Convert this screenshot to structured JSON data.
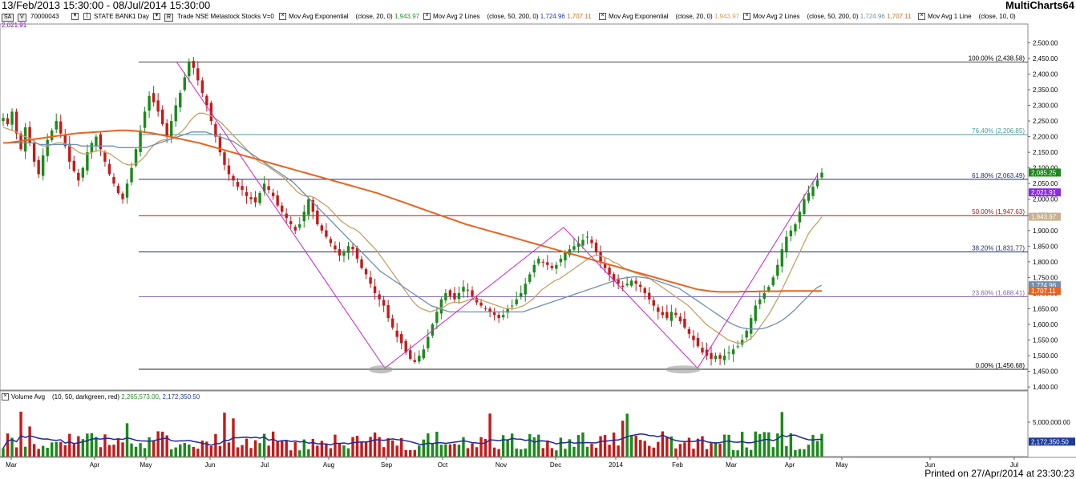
{
  "header": {
    "date_range": "13/Feb/2013 15:30:00 - 08/Jul/2014 15:30:00",
    "brand": "MultiCharts64"
  },
  "indicator_bar": {
    "box_sa": "SA",
    "box_v": "V",
    "symbol_code": "70000043",
    "symbol": "STATE BANK",
    "resolution": "1 Day",
    "box_r": "R",
    "feed": "Trade NSE Metastock Stocks V=0",
    "studies": [
      {
        "name": "Mov Avg Exponential",
        "params": "(close, 20, 0)",
        "values": [
          "1,943.97"
        ],
        "colors": [
          "#2a8a2a"
        ]
      },
      {
        "name": "Mov Avg 2 Lines",
        "params": "(close, 50, 200, 0)",
        "values": [
          "1,724.96",
          "1,707.11"
        ],
        "colors": [
          "#1e3c9a",
          "#d2691e"
        ]
      },
      {
        "name": "Mov Avg Exponential",
        "params": "(close, 20, 0)",
        "values": [
          "1,943.97"
        ],
        "colors": [
          "#c8a064"
        ]
      },
      {
        "name": "Mov Avg 2 Lines",
        "params": "(close, 50, 200, 0)",
        "values": [
          "1,724.96",
          "1,707.11"
        ],
        "colors": [
          "#6f8fb0",
          "#d2691e"
        ]
      },
      {
        "name": "Mov Avg 1 Line",
        "params": "(close, 10, 0)",
        "values": [],
        "colors": []
      }
    ],
    "sub_value": "2,021.91"
  },
  "volume_legend": {
    "label": "Volume Avg",
    "params": "(10, 50, darkgreen, red)",
    "value1": "2,265,573.00",
    "value2": "2,172,350.50",
    "value1_color": "#2a8a2a",
    "value2_color": "#1e3c9a"
  },
  "footer": {
    "printed": "Printed on 27/Apr/2014 at 23:30:23"
  },
  "chart_data": {
    "type": "candlestick",
    "price_axis": {
      "ylim": [
        1390,
        2560
      ],
      "ticks": [
        "2,500.00",
        "2,450.00",
        "2,400.00",
        "2,350.00",
        "2,300.00",
        "2,250.00",
        "2,200.00",
        "2,150.00",
        "2,100.00",
        "2,050.00",
        "2,000.00",
        "1,950.00",
        "1,900.00",
        "1,850.00",
        "1,800.00",
        "1,750.00",
        "1,700.00",
        "1,650.00",
        "1,600.00",
        "1,550.00",
        "1,500.00",
        "1,450.00",
        "1,400.00"
      ],
      "tick_values": [
        2500,
        2450,
        2400,
        2350,
        2300,
        2250,
        2200,
        2150,
        2100,
        2050,
        2000,
        1950,
        1900,
        1850,
        1800,
        1750,
        1700,
        1650,
        1600,
        1550,
        1500,
        1450,
        1400
      ]
    },
    "volume_axis": {
      "ylim": [
        0,
        7800000
      ],
      "tick": "5,000,000.00",
      "tick_value": 5000000,
      "avg_label": "2,172,350.50",
      "avg_value": 2172350
    },
    "x_axis": {
      "labels": [
        "Mar",
        "Apr",
        "May",
        "Jun",
        "Jul",
        "Aug",
        "Sep",
        "Oct",
        "Nov",
        "Dec",
        "2014",
        "Feb",
        "Mar",
        "Apr",
        "May",
        "Jun",
        "Jul"
      ],
      "positions": [
        14,
        40,
        63,
        86,
        110,
        134,
        157,
        180,
        203,
        226,
        250,
        274,
        295,
        319,
        342,
        366,
        389
      ]
    },
    "price_flags": [
      {
        "label": "2,085.25",
        "value": 2085.25,
        "color": "#1a8a1a"
      },
      {
        "label": "2,021.91",
        "value": 2021.91,
        "color": "#8a2be2"
      },
      {
        "label": "1,943.97",
        "value": 1943.97,
        "color": "#c8b090"
      },
      {
        "label": "1,724.96",
        "value": 1724.96,
        "color": "#6f8fb0"
      },
      {
        "label": "1,707.11",
        "value": 1707.11,
        "color": "#e8641e"
      }
    ],
    "fibonacci": [
      {
        "label": "100.00% (2,438.58)",
        "value": 2438.58,
        "color": "#444444"
      },
      {
        "label": "76.40% (2,206.85)",
        "value": 2206.85,
        "color": "#4a9a9a"
      },
      {
        "label": "61.80% (2,063.49)",
        "value": 2063.49,
        "color": "#1e2a7a"
      },
      {
        "label": "50.00% (1,947.63)",
        "value": 1947.63,
        "color": "#b01818"
      },
      {
        "label": "38.20% (1,831.77)",
        "value": 1831.77,
        "color": "#1e2a7a"
      },
      {
        "label": "23.60% (1,688.41)",
        "value": 1688.41,
        "color": "#7a6aa8"
      },
      {
        "label": "0.00% (1,456.68)",
        "value": 1456.68,
        "color": "#222222"
      }
    ],
    "closes": [
      2260,
      2240,
      2280,
      2210,
      2160,
      2230,
      2180,
      2120,
      2080,
      2140,
      2190,
      2220,
      2250,
      2210,
      2170,
      2120,
      2090,
      2060,
      2100,
      2150,
      2180,
      2200,
      2160,
      2120,
      2080,
      2050,
      2020,
      2000,
      2050,
      2100,
      2160,
      2220,
      2280,
      2330,
      2310,
      2280,
      2240,
      2200,
      2250,
      2300,
      2340,
      2390,
      2440,
      2420,
      2380,
      2340,
      2300,
      2250,
      2200,
      2150,
      2110,
      2080,
      2060,
      2040,
      2030,
      2010,
      2000,
      1990,
      2020,
      2050,
      2030,
      2010,
      1980,
      1960,
      1940,
      1920,
      1900,
      1920,
      1960,
      2000,
      1960,
      1920,
      1900,
      1880,
      1860,
      1840,
      1820,
      1830,
      1850,
      1840,
      1810,
      1780,
      1760,
      1730,
      1700,
      1680,
      1660,
      1620,
      1590,
      1560,
      1540,
      1510,
      1490,
      1480,
      1500,
      1520,
      1560,
      1600,
      1640,
      1680,
      1700,
      1690,
      1680,
      1700,
      1720,
      1710,
      1690,
      1670,
      1660,
      1650,
      1640,
      1630,
      1620,
      1630,
      1650,
      1660,
      1680,
      1700,
      1730,
      1760,
      1790,
      1810,
      1800,
      1790,
      1780,
      1790,
      1810,
      1830,
      1840,
      1850,
      1860,
      1870,
      1880,
      1860,
      1830,
      1800,
      1780,
      1760,
      1740,
      1730,
      1720,
      1730,
      1740,
      1730,
      1720,
      1700,
      1680,
      1660,
      1640,
      1630,
      1620,
      1640,
      1630,
      1610,
      1590,
      1570,
      1550,
      1530,
      1510,
      1500,
      1490,
      1500,
      1490,
      1500,
      1510,
      1520,
      1530,
      1550,
      1580,
      1620,
      1660,
      1680,
      1700,
      1720,
      1750,
      1790,
      1840,
      1880,
      1900,
      1920,
      1960,
      2000,
      2020,
      2040,
      2060,
      2085
    ],
    "series": [
      {
        "name": "EMA 20",
        "color": "#c8a064",
        "values": [
          2230,
          2225,
          2220,
          2215,
          2205,
          2200,
          2195,
          2185,
          2175,
          2170,
          2170,
          2175,
          2180,
          2180,
          2178,
          2170,
          2160,
          2150,
          2145,
          2145,
          2150,
          2155,
          2155,
          2150,
          2145,
          2135,
          2125,
          2115,
          2110,
          2110,
          2115,
          2125,
          2140,
          2160,
          2175,
          2185,
          2190,
          2190,
          2195,
          2205,
          2215,
          2230,
          2250,
          2265,
          2275,
          2275,
          2270,
          2265,
          2255,
          2245,
          2230,
          2215,
          2200,
          2185,
          2170,
          2155,
          2140,
          2125,
          2115,
          2110,
          2100,
          2090,
          2080,
          2070,
          2055,
          2040,
          2025,
          2015,
          2010,
          2010,
          2005,
          1995,
          1985,
          1975,
          1960,
          1945,
          1930,
          1920,
          1910,
          1905,
          1895,
          1880,
          1865,
          1850,
          1835,
          1815,
          1795,
          1775,
          1755,
          1735,
          1715,
          1695,
          1675,
          1660,
          1650,
          1645,
          1640,
          1645,
          1650,
          1655,
          1665,
          1670,
          1670,
          1670,
          1675,
          1680,
          1680,
          1680,
          1675,
          1670,
          1665,
          1660,
          1655,
          1650,
          1650,
          1650,
          1655,
          1660,
          1670,
          1680,
          1695,
          1710,
          1720,
          1730,
          1740,
          1745,
          1755,
          1765,
          1775,
          1785,
          1795,
          1805,
          1815,
          1820,
          1820,
          1815,
          1810,
          1800,
          1795,
          1785,
          1775,
          1770,
          1765,
          1760,
          1755,
          1750,
          1740,
          1730,
          1720,
          1710,
          1700,
          1690,
          1680,
          1670,
          1660,
          1645,
          1630,
          1615,
          1600,
          1590,
          1580,
          1570,
          1560,
          1550,
          1545,
          1540,
          1540,
          1545,
          1555,
          1570,
          1590,
          1610,
          1630,
          1655,
          1680,
          1710,
          1740,
          1770,
          1800,
          1830,
          1860,
          1890,
          1910,
          1925,
          1944
        ]
      },
      {
        "name": "EMA 50",
        "color": "#6f8fb0",
        "values": [
          2180,
          2180,
          2180,
          2180,
          2180,
          2180,
          2180,
          2180,
          2175,
          2175,
          2175,
          2175,
          2175,
          2175,
          2175,
          2175,
          2175,
          2170,
          2170,
          2170,
          2170,
          2170,
          2170,
          2170,
          2170,
          2165,
          2165,
          2165,
          2165,
          2165,
          2165,
          2165,
          2170,
          2175,
          2180,
          2185,
          2190,
          2195,
          2200,
          2205,
          2210,
          2215,
          2215,
          2215,
          2215,
          2210,
          2205,
          2200,
          2195,
          2190,
          2185,
          2175,
          2165,
          2155,
          2145,
          2135,
          2125,
          2115,
          2105,
          2095,
          2085,
          2075,
          2065,
          2055,
          2040,
          2025,
          2010,
          1995,
          1980,
          1965,
          1950,
          1935,
          1920,
          1905,
          1890,
          1875,
          1860,
          1845,
          1830,
          1815,
          1800,
          1785,
          1770,
          1760,
          1750,
          1740,
          1730,
          1720,
          1710,
          1700,
          1690,
          1680,
          1670,
          1660,
          1655,
          1650,
          1645,
          1640,
          1640,
          1640,
          1640,
          1640,
          1640,
          1640,
          1640,
          1640,
          1640,
          1640,
          1640,
          1640,
          1640,
          1640,
          1640,
          1640,
          1645,
          1650,
          1655,
          1660,
          1665,
          1670,
          1675,
          1680,
          1685,
          1690,
          1695,
          1700,
          1705,
          1710,
          1715,
          1720,
          1725,
          1730,
          1735,
          1740,
          1745,
          1748,
          1750,
          1752,
          1752,
          1750,
          1748,
          1745,
          1740,
          1735,
          1730,
          1725,
          1720,
          1715,
          1705,
          1695,
          1685,
          1675,
          1665,
          1655,
          1645,
          1635,
          1625,
          1615,
          1605,
          1598,
          1592,
          1588,
          1586,
          1585,
          1585,
          1586,
          1590,
          1596,
          1602,
          1610,
          1620,
          1632,
          1645,
          1660,
          1675,
          1690,
          1705,
          1718,
          1725
        ]
      },
      {
        "name": "EMA 200",
        "color": "#e8641e",
        "values": [
          2180,
          2180,
          2182,
          2184,
          2186,
          2188,
          2190,
          2192,
          2194,
          2196,
          2198,
          2200,
          2202,
          2204,
          2206,
          2208,
          2210,
          2211,
          2212,
          2213,
          2214,
          2215,
          2216,
          2217,
          2218,
          2219,
          2220,
          2220,
          2220,
          2219,
          2218,
          2216,
          2214,
          2212,
          2210,
          2207,
          2204,
          2201,
          2198,
          2195,
          2192,
          2189,
          2186,
          2183,
          2180,
          2176,
          2172,
          2168,
          2164,
          2160,
          2156,
          2152,
          2148,
          2144,
          2140,
          2136,
          2132,
          2128,
          2124,
          2120,
          2116,
          2112,
          2108,
          2104,
          2100,
          2096,
          2092,
          2088,
          2084,
          2080,
          2076,
          2072,
          2068,
          2064,
          2060,
          2056,
          2052,
          2048,
          2044,
          2040,
          2036,
          2032,
          2028,
          2024,
          2020,
          2015,
          2010,
          2005,
          2000,
          1995,
          1990,
          1985,
          1980,
          1975,
          1970,
          1965,
          1960,
          1955,
          1950,
          1945,
          1940,
          1935,
          1930,
          1925,
          1920,
          1916,
          1912,
          1908,
          1904,
          1900,
          1896,
          1892,
          1888,
          1884,
          1880,
          1876,
          1872,
          1868,
          1864,
          1860,
          1856,
          1852,
          1848,
          1844,
          1840,
          1836,
          1832,
          1828,
          1824,
          1820,
          1816,
          1812,
          1808,
          1804,
          1800,
          1796,
          1792,
          1788,
          1784,
          1780,
          1776,
          1772,
          1768,
          1764,
          1760,
          1756,
          1752,
          1748,
          1744,
          1740,
          1736,
          1732,
          1728,
          1724,
          1720,
          1716,
          1712,
          1710,
          1708,
          1706,
          1705,
          1704,
          1704,
          1704,
          1704,
          1704,
          1705,
          1705,
          1705,
          1705,
          1706,
          1706,
          1706,
          1706,
          1706,
          1707,
          1707,
          1707,
          1707,
          1707,
          1707,
          1707,
          1707,
          1707,
          1707
        ]
      }
    ]
  }
}
